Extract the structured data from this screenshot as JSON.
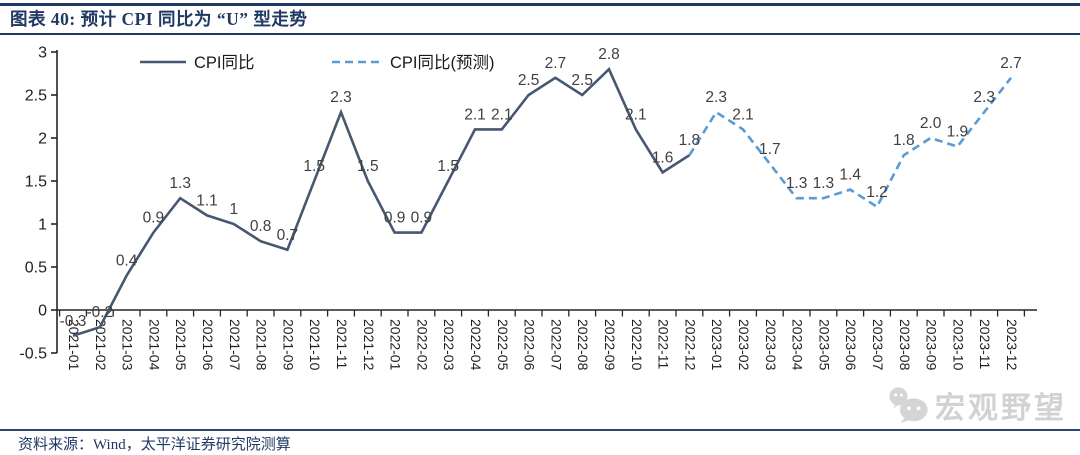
{
  "header": {
    "title": "图表 40: 预计 CPI 同比为 “U” 型走势"
  },
  "footer": {
    "source": "资料来源：Wind，太平洋证券研究院测算"
  },
  "watermark": {
    "text": "宏观野望",
    "icon": "wechat-logo-icon"
  },
  "colors": {
    "accent_navy": "#203864",
    "actual_line": "#46586F",
    "forecast_line": "#5B9BD5",
    "data_label": "#404040",
    "axis": "#262626",
    "watermark_gray": "#C9C9C9"
  },
  "chart_data": {
    "type": "line",
    "title": "预计 CPI 同比为 “U” 型走势",
    "x": [
      "2021-01",
      "2021-02",
      "2021-03",
      "2021-04",
      "2021-05",
      "2021-06",
      "2021-07",
      "2021-08",
      "2021-09",
      "2021-10",
      "2021-11",
      "2021-12",
      "2022-01",
      "2022-02",
      "2022-03",
      "2022-04",
      "2022-05",
      "2022-06",
      "2022-07",
      "2022-08",
      "2022-09",
      "2022-10",
      "2022-11",
      "2022-12",
      "2023-01",
      "2023-02",
      "2023-03",
      "2023-04",
      "2023-05",
      "2023-06",
      "2023-07",
      "2023-08",
      "2023-09",
      "2023-10",
      "2023-11",
      "2023-12"
    ],
    "series": [
      {
        "name": "CPI同比",
        "style": "solid",
        "color": "#46586F",
        "values": [
          -0.3,
          -0.2,
          0.4,
          0.9,
          1.3,
          1.1,
          1,
          0.8,
          0.7,
          1.5,
          2.3,
          1.5,
          0.9,
          0.9,
          1.5,
          2.1,
          2.1,
          2.5,
          2.7,
          2.5,
          2.8,
          2.1,
          1.6,
          1.8,
          null,
          null,
          null,
          null,
          null,
          null,
          null,
          null,
          null,
          null,
          null,
          null
        ]
      },
      {
        "name": "CPI同比(预测)",
        "style": "dashed",
        "color": "#5B9BD5",
        "values": [
          null,
          null,
          null,
          null,
          null,
          null,
          null,
          null,
          null,
          null,
          null,
          null,
          null,
          null,
          null,
          null,
          null,
          null,
          null,
          null,
          null,
          null,
          null,
          1.8,
          2.3,
          2.1,
          1.7,
          1.3,
          1.3,
          1.4,
          1.2,
          1.8,
          2.0,
          1.9,
          2.3,
          2.7
        ]
      }
    ],
    "point_labels": [
      "-0.3",
      "-0.2",
      "0.4",
      "0.9",
      "1.3",
      "1.1",
      "1",
      "0.8",
      "0.7",
      "1.5",
      "2.3",
      "1.5",
      "0.9",
      "0.9",
      "1.5",
      "2.1",
      "2.1",
      "2.5",
      "2.7",
      "2.5",
      "2.8",
      "2.1",
      "1.6",
      "1.8",
      "2.3",
      "2.1",
      "1.7",
      "1.3",
      "1.3",
      "1.4",
      "1.2",
      "1.8",
      "2.0",
      "1.9",
      "2.3",
      "2.7"
    ],
    "ylim": [
      -0.5,
      3
    ],
    "yticks": [
      "3",
      "2.5",
      "2",
      "1.5",
      "1",
      "0.5",
      "0",
      "-0.5"
    ],
    "grid": false,
    "legend_position": "top-inside"
  }
}
